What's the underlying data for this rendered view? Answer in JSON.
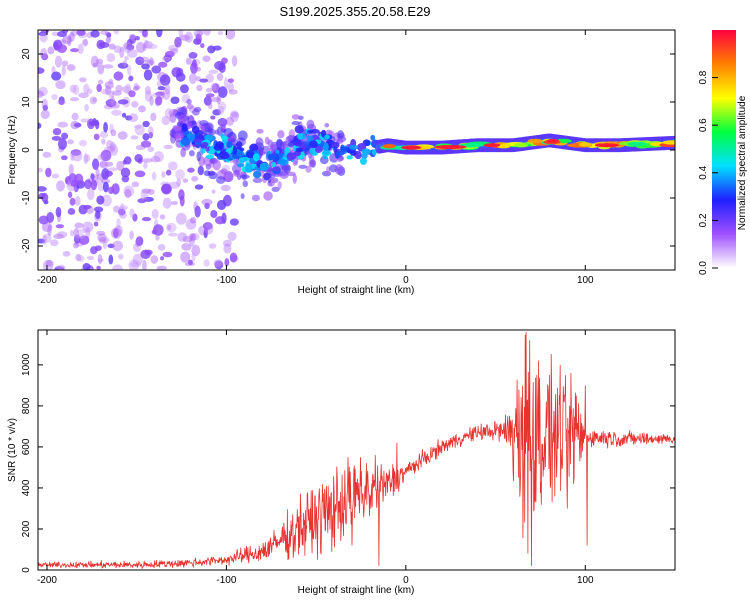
{
  "title": "S199.2025.355.20.58.E29",
  "chart_data": [
    {
      "type": "heatmap",
      "name": "spectrogram",
      "xlabel": "Height of straight line (km)",
      "ylabel": "Frequency (Hz)",
      "xlim": [
        -205,
        150
      ],
      "ylim": [
        -25,
        25
      ],
      "xticks": [
        -200,
        -100,
        0,
        100
      ],
      "yticks": [
        -20,
        -10,
        0,
        10,
        20
      ],
      "colorbar": {
        "label": "Normalized spectral amplitude",
        "range": [
          0.0,
          1.0
        ],
        "ticks": [
          0.0,
          0.2,
          0.4,
          0.6,
          0.8
        ],
        "stops": [
          "#ffffff",
          "#a050ff",
          "#2020ff",
          "#00e0ff",
          "#00ff40",
          "#ffff00",
          "#ff8000",
          "#ff0040"
        ]
      },
      "ridge": {
        "description": "dominant frequency band",
        "points": [
          [
            -125,
            4
          ],
          [
            -110,
            1
          ],
          [
            -95,
            -1
          ],
          [
            -80,
            -3
          ],
          [
            -70,
            -2
          ],
          [
            -60,
            1
          ],
          [
            -50,
            2
          ],
          [
            -40,
            0
          ],
          [
            -25,
            0
          ],
          [
            -10,
            1
          ],
          [
            0,
            0.5
          ],
          [
            20,
            0.5
          ],
          [
            40,
            1
          ],
          [
            60,
            1
          ],
          [
            80,
            2
          ],
          [
            100,
            1
          ],
          [
            120,
            1
          ],
          [
            150,
            1.5
          ]
        ]
      }
    },
    {
      "type": "line",
      "name": "snr",
      "xlabel": "Height of straight line (km)",
      "ylabel": "SNR (10 * v/v)",
      "xlim": [
        -205,
        150
      ],
      "ylim": [
        0,
        1170
      ],
      "xticks": [
        -200,
        -100,
        0,
        100
      ],
      "yticks": [
        0,
        200,
        400,
        600,
        800,
        1000
      ],
      "color": "#e8322f",
      "envelope": [
        [
          -205,
          25
        ],
        [
          -150,
          25
        ],
        [
          -120,
          35
        ],
        [
          -100,
          50
        ],
        [
          -80,
          90
        ],
        [
          -70,
          140
        ],
        [
          -60,
          200
        ],
        [
          -50,
          250
        ],
        [
          -40,
          300
        ],
        [
          -30,
          360
        ],
        [
          -20,
          380
        ],
        [
          -10,
          420
        ],
        [
          0,
          480
        ],
        [
          10,
          540
        ],
        [
          20,
          600
        ],
        [
          30,
          640
        ],
        [
          40,
          670
        ],
        [
          50,
          680
        ],
        [
          60,
          670
        ],
        [
          80,
          650
        ],
        [
          100,
          650
        ],
        [
          120,
          640
        ],
        [
          150,
          640
        ]
      ],
      "noise": [
        [
          -205,
          10
        ],
        [
          -100,
          20
        ],
        [
          -70,
          60
        ],
        [
          -60,
          120
        ],
        [
          -40,
          170
        ],
        [
          -20,
          120
        ],
        [
          0,
          40
        ],
        [
          20,
          30
        ],
        [
          40,
          30
        ],
        [
          55,
          50
        ],
        [
          65,
          400
        ],
        [
          75,
          300
        ],
        [
          95,
          200
        ],
        [
          100,
          40
        ],
        [
          150,
          20
        ]
      ],
      "spikes": [
        [
          -68,
          230
        ],
        [
          -60,
          260
        ],
        [
          -40,
          380
        ],
        [
          -32,
          430
        ],
        [
          -22,
          520
        ],
        [
          -17,
          560
        ],
        [
          -15,
          20
        ],
        [
          -30,
          120
        ],
        [
          -5,
          620
        ],
        [
          63,
          880
        ],
        [
          67,
          1160
        ],
        [
          68,
          80
        ],
        [
          69,
          1120
        ],
        [
          70,
          20
        ],
        [
          73,
          950
        ],
        [
          80,
          950
        ],
        [
          86,
          1000
        ],
        [
          90,
          300
        ],
        [
          95,
          850
        ],
        [
          100,
          900
        ],
        [
          101,
          120
        ]
      ]
    }
  ]
}
